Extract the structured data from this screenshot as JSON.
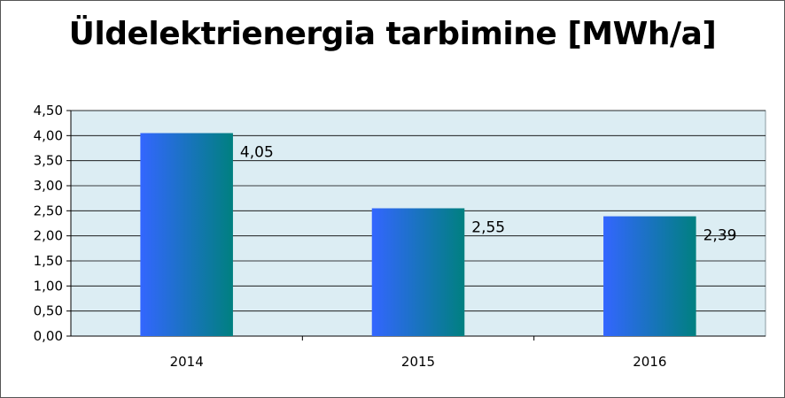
{
  "chart_data": {
    "type": "bar",
    "title": "Üldelektrienergia tarbimine [MWh/a]",
    "xlabel": "",
    "ylabel": "",
    "categories": [
      "2014",
      "2015",
      "2016"
    ],
    "values": [
      4.05,
      2.55,
      2.39
    ],
    "data_labels": [
      "4,05",
      "2,55",
      "2,39"
    ],
    "ylim": [
      0,
      4.5
    ],
    "yticks": [
      "0,00",
      "0,50",
      "1,00",
      "1,50",
      "2,00",
      "2,50",
      "3,00",
      "3,50",
      "4,00",
      "4,50"
    ],
    "grid": true,
    "legend": "none",
    "colors": {
      "plot_background": "#dcedf3",
      "bar_start": "#3366ff",
      "bar_end": "#008080",
      "gridline": "#000000"
    }
  }
}
